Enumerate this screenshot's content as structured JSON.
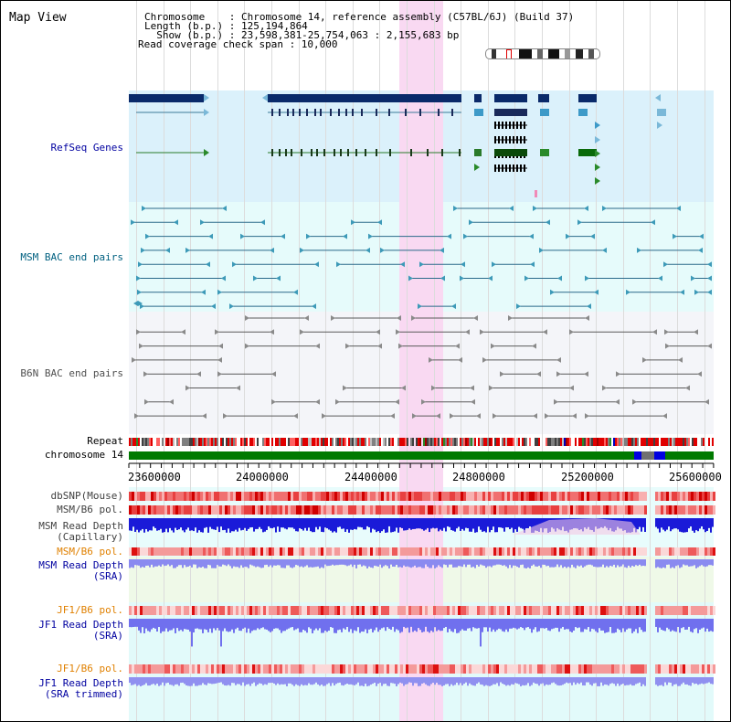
{
  "title": "Map View",
  "info": {
    "chromosome_line": "Chromosome    : Chromosome 14, reference assembly (C57BL/6J) (Build 37)",
    "length_line": "Length (b.p.) : 125,194,864",
    "show_line": "  Show (b.p.) : 23,598,381-25,754,063 : 2,155,683 bp",
    "span_line": "Read coverage check span : 10,000"
  },
  "tracks": {
    "refseq": "RefSeq Genes",
    "msm_bac": "MSM BAC end pairs",
    "b6n_bac": "B6N BAC end pairs",
    "repeat": "Repeat",
    "chromosome": "chromosome 14",
    "dbsnp": "dbSNP(Mouse)",
    "msm_b6_pol": "MSM/B6 pol.",
    "msm_depth_cap_1": "MSM Read Depth",
    "msm_depth_cap_2": "(Capillary)",
    "msm_b6_pol2": "MSM/B6 pol.",
    "msm_depth_sra_1": "MSM Read Depth",
    "msm_depth_sra_2": "(SRA)",
    "jf1_b6_pol": "JF1/B6 pol.",
    "jf1_depth_sra_1": "JF1 Read Depth",
    "jf1_depth_sra_2": "(SRA)",
    "jf1_b6_pol2": "JF1/B6 pol.",
    "jf1_depth_trim_1": "JF1 Read Depth",
    "jf1_depth_trim_2": "(SRA trimmed)"
  },
  "axis": {
    "ticks": [
      "23600000",
      "24000000",
      "24400000",
      "24800000",
      "25200000",
      "25600000"
    ]
  },
  "colors": {
    "refseq_bg": "#dbf1fb",
    "msm_bg": "#e6fbfb",
    "b6n_bg": "#f4f5f9",
    "highlight": "#f9d9f2",
    "label_blue": "#0000a0",
    "label_orange": "#e08000",
    "chromosome_green": "#008000"
  }
}
